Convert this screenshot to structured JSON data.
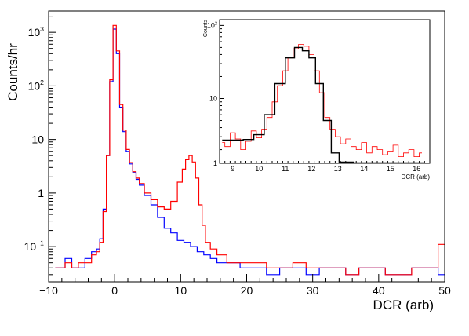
{
  "chart_data": [
    {
      "type": "histogram",
      "xlabel": "DCR (arb)",
      "ylabel": "Counts/hr",
      "xlim": [
        -10,
        50
      ],
      "ylim": [
        0.022,
        2500
      ],
      "yscale": "log",
      "grid": false,
      "xticks": [
        "−10",
        "0",
        "10",
        "20",
        "30",
        "40",
        "50"
      ],
      "yticks": [
        {
          "value": 1000,
          "base": "10",
          "exp": "3"
        },
        {
          "value": 100,
          "base": "10",
          "exp": "2"
        },
        {
          "value": 10,
          "base": "10",
          "exp": ""
        },
        {
          "value": 1,
          "base": "1",
          "exp": ""
        },
        {
          "value": 0.1,
          "base": "10",
          "exp": "−1"
        }
      ],
      "series": [
        {
          "color": "#0000ff",
          "points": [
            [
              -9,
              0.04
            ],
            [
              -8,
              0.04
            ],
            [
              -7,
              0.06
            ],
            [
              -6,
              0.04
            ],
            [
              -5,
              0.04
            ],
            [
              -4,
              0.06
            ],
            [
              -3,
              0.08
            ],
            [
              -2.5,
              0.09
            ],
            [
              -2,
              0.14
            ],
            [
              -1.5,
              0.5
            ],
            [
              -1,
              5
            ],
            [
              -0.5,
              120
            ],
            [
              0,
              1150
            ],
            [
              0.5,
              400
            ],
            [
              1,
              40
            ],
            [
              1.5,
              14
            ],
            [
              2,
              6
            ],
            [
              2.5,
              3.5
            ],
            [
              3,
              2.4
            ],
            [
              3.5,
              1.8
            ],
            [
              4,
              1.4
            ],
            [
              5,
              0.9
            ],
            [
              6,
              0.6
            ],
            [
              7,
              0.35
            ],
            [
              8,
              0.22
            ],
            [
              9,
              0.18
            ],
            [
              10,
              0.13
            ],
            [
              11,
              0.12
            ],
            [
              12,
              0.1
            ],
            [
              13,
              0.08
            ],
            [
              14,
              0.07
            ],
            [
              15,
              0.06
            ],
            [
              16,
              0.05
            ],
            [
              18,
              0.05
            ],
            [
              20,
              0.04
            ],
            [
              22,
              0.04
            ],
            [
              24,
              0.03
            ],
            [
              26,
              0.04
            ],
            [
              28,
              0.04
            ],
            [
              30,
              0.03
            ],
            [
              32,
              0.04
            ],
            [
              34,
              0.04
            ],
            [
              36,
              0.03
            ],
            [
              38,
              0.04
            ],
            [
              40,
              0.04
            ],
            [
              42,
              0.03
            ],
            [
              44,
              0.03
            ],
            [
              46,
              0.04
            ],
            [
              48,
              0.04
            ],
            [
              50,
              0.03
            ]
          ]
        },
        {
          "color": "#ff0000",
          "points": [
            [
              -9,
              0.04
            ],
            [
              -8,
              0.04
            ],
            [
              -7,
              0.05
            ],
            [
              -6,
              0.04
            ],
            [
              -5,
              0.05
            ],
            [
              -4,
              0.05
            ],
            [
              -3,
              0.07
            ],
            [
              -2.5,
              0.08
            ],
            [
              -2,
              0.12
            ],
            [
              -1.5,
              0.45
            ],
            [
              -1,
              5
            ],
            [
              -0.5,
              130
            ],
            [
              0,
              1350
            ],
            [
              0.5,
              450
            ],
            [
              1,
              45
            ],
            [
              1.5,
              15
            ],
            [
              2,
              6.5
            ],
            [
              2.5,
              3.7
            ],
            [
              3,
              2.5
            ],
            [
              3.5,
              1.9
            ],
            [
              4,
              1.5
            ],
            [
              5,
              1.0
            ],
            [
              6,
              0.75
            ],
            [
              7,
              0.55
            ],
            [
              8,
              0.5
            ],
            [
              9,
              0.7
            ],
            [
              10,
              1.6
            ],
            [
              10.5,
              2.8
            ],
            [
              11,
              4.2
            ],
            [
              11.5,
              5
            ],
            [
              12,
              3.8
            ],
            [
              12.5,
              1.9
            ],
            [
              13,
              0.6
            ],
            [
              13.5,
              0.25
            ],
            [
              14,
              0.12
            ],
            [
              15,
              0.09
            ],
            [
              16,
              0.07
            ],
            [
              18,
              0.05
            ],
            [
              20,
              0.05
            ],
            [
              22,
              0.05
            ],
            [
              24,
              0.04
            ],
            [
              26,
              0.04
            ],
            [
              28,
              0.05
            ],
            [
              30,
              0.04
            ],
            [
              32,
              0.04
            ],
            [
              34,
              0.04
            ],
            [
              36,
              0.03
            ],
            [
              38,
              0.04
            ],
            [
              40,
              0.04
            ],
            [
              42,
              0.03
            ],
            [
              44,
              0.03
            ],
            [
              46,
              0.04
            ],
            [
              48,
              0.04
            ],
            [
              50,
              0.11
            ]
          ]
        }
      ]
    },
    {
      "type": "histogram",
      "xlabel": "DCR (arb)",
      "ylabel": "Counts",
      "xlim": [
        8.5,
        16.5
      ],
      "ylim": [
        1.3,
        120
      ],
      "yscale": "log",
      "grid": false,
      "xticks": [
        "9",
        "10",
        "11",
        "12",
        "13",
        "14",
        "15",
        "16"
      ],
      "yticks": [
        {
          "value": 100,
          "base": "10",
          "exp": "2"
        },
        {
          "value": 10,
          "base": "10",
          "exp": ""
        },
        {
          "value": 1,
          "base": "1",
          "exp": ""
        }
      ],
      "series": [
        {
          "color": "#ff0000",
          "points": [
            [
              8.6,
              2.5
            ],
            [
              8.8,
              2.2
            ],
            [
              9.0,
              3.4
            ],
            [
              9.2,
              2.8
            ],
            [
              9.4,
              2.0
            ],
            [
              9.6,
              2.6
            ],
            [
              9.8,
              3.6
            ],
            [
              10.0,
              2.9
            ],
            [
              10.2,
              3.8
            ],
            [
              10.4,
              5.5
            ],
            [
              10.6,
              9
            ],
            [
              10.8,
              15
            ],
            [
              11.0,
              24
            ],
            [
              11.2,
              36
            ],
            [
              11.4,
              48
            ],
            [
              11.6,
              55
            ],
            [
              11.8,
              52
            ],
            [
              12.0,
              40
            ],
            [
              12.2,
              24
            ],
            [
              12.4,
              12
            ],
            [
              12.6,
              5.5
            ],
            [
              12.8,
              3.8
            ],
            [
              13.0,
              3.0
            ],
            [
              13.2,
              2.4
            ],
            [
              13.4,
              2.8
            ],
            [
              13.6,
              2.2
            ],
            [
              13.8,
              2.0
            ],
            [
              14.0,
              2.5
            ],
            [
              14.2,
              1.8
            ],
            [
              14.4,
              2.2
            ],
            [
              14.6,
              2.0
            ],
            [
              14.8,
              1.7
            ],
            [
              15.0,
              1.9
            ],
            [
              15.2,
              2.3
            ],
            [
              15.4,
              1.6
            ],
            [
              15.6,
              1.8
            ],
            [
              15.8,
              2.0
            ],
            [
              16.0,
              1.6
            ],
            [
              16.2,
              1.8
            ]
          ]
        },
        {
          "color": "#000000",
          "points": [
            [
              8.6,
              2.7
            ],
            [
              9.2,
              2.7
            ],
            [
              9.6,
              2.75
            ],
            [
              10.0,
              3.2
            ],
            [
              10.4,
              6
            ],
            [
              10.8,
              16
            ],
            [
              11.2,
              36
            ],
            [
              11.5,
              50
            ],
            [
              11.8,
              45
            ],
            [
              12.0,
              36
            ],
            [
              12.3,
              16
            ],
            [
              12.6,
              5
            ],
            [
              12.9,
              1.8
            ],
            [
              13.2,
              1.35
            ],
            [
              14.0,
              1.32
            ],
            [
              16.3,
              1.32
            ]
          ]
        }
      ]
    }
  ]
}
